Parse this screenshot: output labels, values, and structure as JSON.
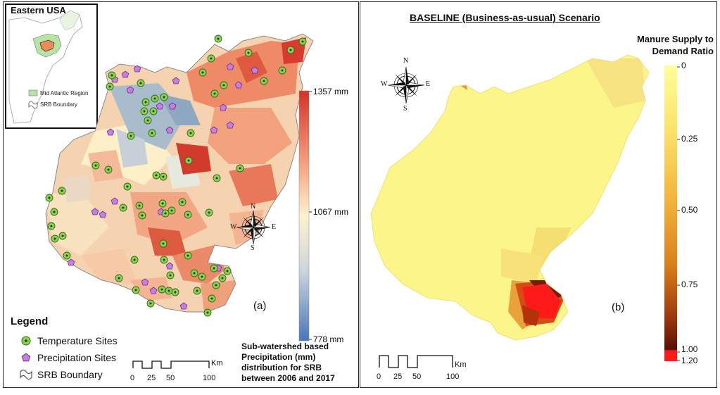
{
  "panel_a": {
    "inset": {
      "title": "Eastern USA",
      "legend": [
        "Mid Atlantic Region",
        "SRB Boundary"
      ]
    },
    "legend": {
      "title": "Legend",
      "items": [
        "Temperature Sites",
        "Precipitation Sites",
        "SRB Boundary"
      ]
    },
    "colorbar": {
      "max_label": "1357 mm",
      "mid_label": "1067 mm",
      "min_label": "778 mm",
      "max": 1357,
      "mid": 1067,
      "min": 778,
      "colors": [
        "#d73027",
        "#f4a582",
        "#fdf2d0",
        "#cdd5dc",
        "#4a76b8"
      ]
    },
    "north_arrow": {
      "n": "N",
      "e": "E",
      "s": "S",
      "w": "W"
    },
    "scale_bar": {
      "ticks": [
        "0",
        "25",
        "50",
        "100"
      ],
      "unit": "Km"
    },
    "caption": "Sub-watershed based Precipitation (mm) distribution for SRB between 2006 and 2017",
    "tag": "(a)",
    "marker_colors": {
      "temperature": "#8fd14f",
      "precipitation": "#c77ee0"
    }
  },
  "panel_b": {
    "title": "BASELINE (Business-as-usual) Scenario",
    "colorbar": {
      "title": "Manure Supply to Demand Ratio",
      "ticks": [
        "0",
        "0.25",
        "0.50",
        "0.75",
        "1.00",
        "1.20"
      ],
      "colors": [
        "#ffff99",
        "#fce16a",
        "#f2b53c",
        "#d9821c",
        "#9a3a0c",
        "#5c0e04",
        "#ff1a1a"
      ]
    },
    "north_arrow": {
      "n": "N",
      "e": "E",
      "s": "S",
      "w": "W"
    },
    "scale_bar": {
      "ticks": [
        "0",
        "25",
        "50",
        "100"
      ],
      "unit": "Km"
    },
    "tag": "(b)"
  }
}
